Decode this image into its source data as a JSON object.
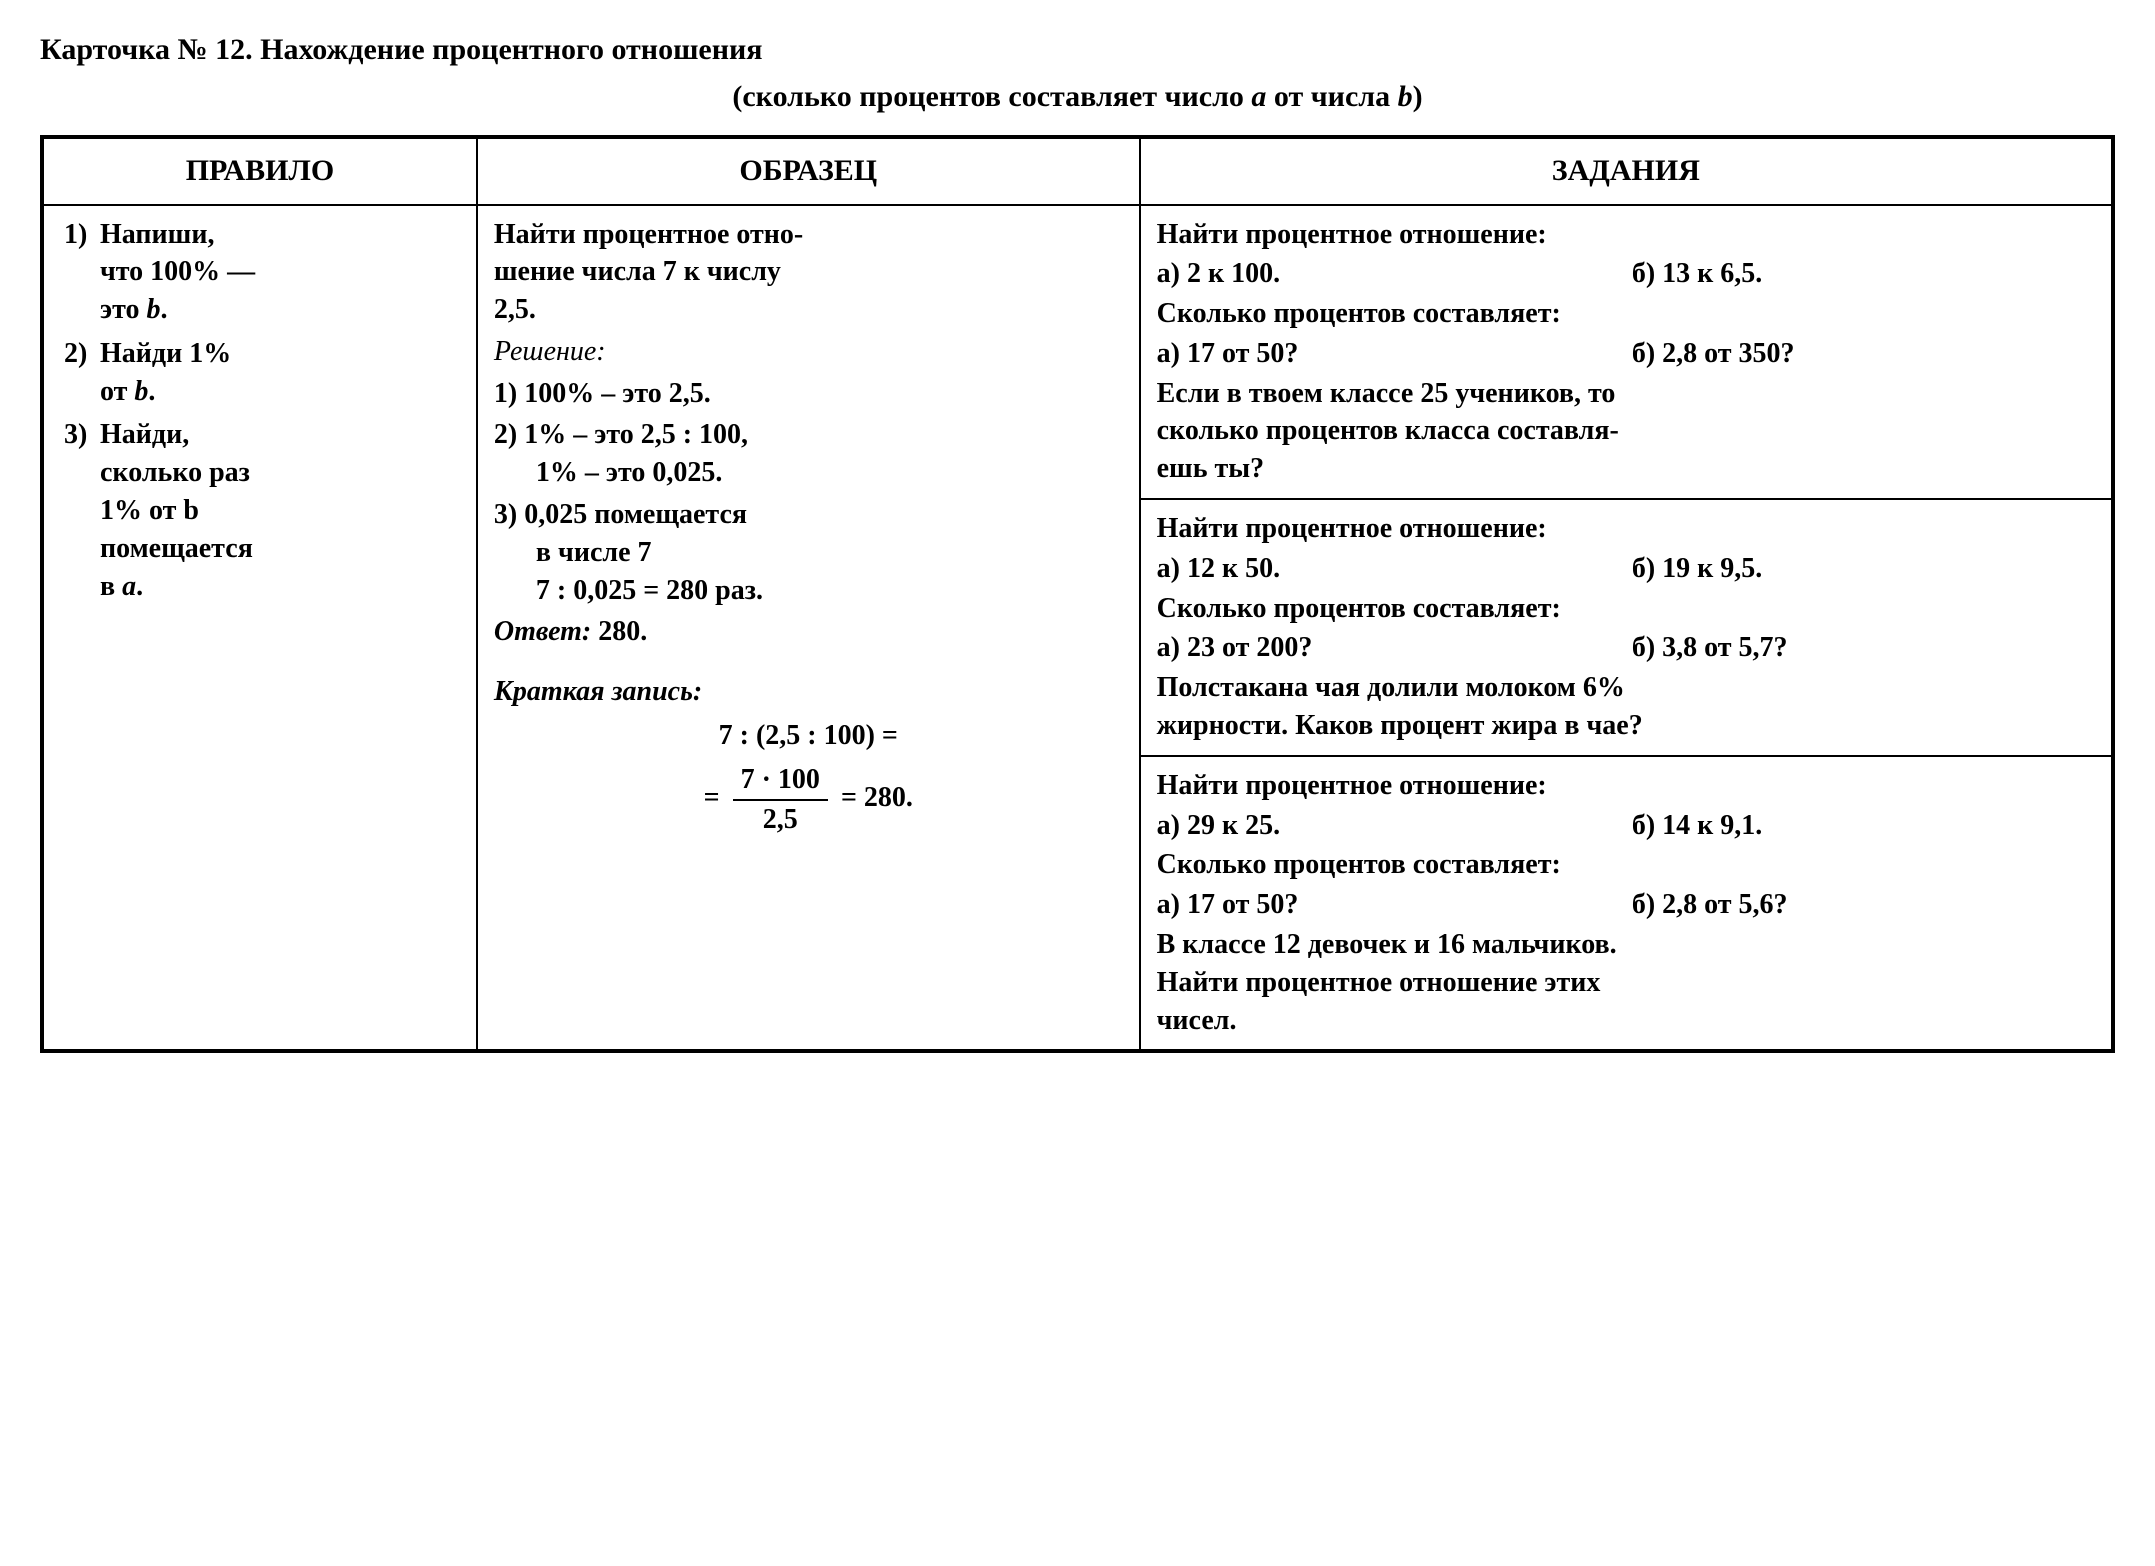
{
  "title": {
    "line1_prefix": "Карточка № 12.",
    "line1_main": " Нахождение процентного отношения",
    "line2_pre": "(сколько процентов составляет число ",
    "line2_a": "a",
    "line2_mid": " от числа ",
    "line2_b": "b",
    "line2_post": ")"
  },
  "headers": {
    "rule": "ПРАВИЛО",
    "sample": "ОБРАЗЕЦ",
    "tasks": "ЗАДАНИЯ"
  },
  "rule": {
    "r1_a": "Напиши,",
    "r1_b": "что 100% —",
    "r1_c": "это ",
    "r1_i": "b",
    "r1_d": ".",
    "r2_a": "Найди 1%",
    "r2_b": "от ",
    "r2_i": "b",
    "r2_c": ".",
    "r3_a": "Найди,",
    "r3_b": "сколько раз",
    "r3_c": "1% от b",
    "r3_d": "помещается",
    "r3_e": "в ",
    "r3_i": "a",
    "r3_f": "."
  },
  "sample": {
    "intro1": "Найти процентное отно-",
    "intro2": "шение числа 7 к числу",
    "intro3": "2,5.",
    "solution_label": "Решение:",
    "s1": "1) 100% – это 2,5.",
    "s2a": "2) 1% – это 2,5 : 100,",
    "s2b": "1% – это 0,025.",
    "s3a": "3) 0,025 помещается",
    "s3b": "в числе 7",
    "s3c": "7 : 0,025 = 280 раз.",
    "answer": "Ответ: ",
    "answer_val": "280.",
    "short_label": "Краткая запись:",
    "expr1": "7 : (2,5 : 100) =",
    "frac_top": "7 · 100",
    "frac_bot": "2,5",
    "expr2_eq": "= ",
    "expr2_res": " =  280."
  },
  "tasks": [
    {
      "h1": "Найти процентное отношение:",
      "a1": "а) 2 к 100.",
      "b1": "б) 13 к 6,5.",
      "h2": "Сколько процентов составляет:",
      "a2": "а) 17 от 50?",
      "b2": "б) 2,8 от 350?",
      "word1": "Если в твоем классе 25 учеников, то",
      "word2": "сколько процентов класса составля-",
      "word3": "ешь ты?"
    },
    {
      "h1": "Найти процентное отношение:",
      "a1": "а) 12 к 50.",
      "b1": "б) 19 к 9,5.",
      "h2": "Сколько процентов составляет:",
      "a2": "а) 23 от 200?",
      "b2": "б) 3,8 от 5,7?",
      "word1": "Полстакана чая долили молоком 6%",
      "word2": "жирности. Каков процент жира в чае?",
      "word3": ""
    },
    {
      "h1": "Найти процентное отношение:",
      "a1": "а) 29 к 25.",
      "b1": "б) 14 к 9,1.",
      "h2": "Сколько процентов составляет:",
      "a2": "а) 17 от 50?",
      "b2": "б) 2,8 от 5,6?",
      "word1": "В классе 12 девочек и 16 мальчиков.",
      "word2": "Найти процентное отношение этих",
      "word3": "чисел."
    }
  ]
}
